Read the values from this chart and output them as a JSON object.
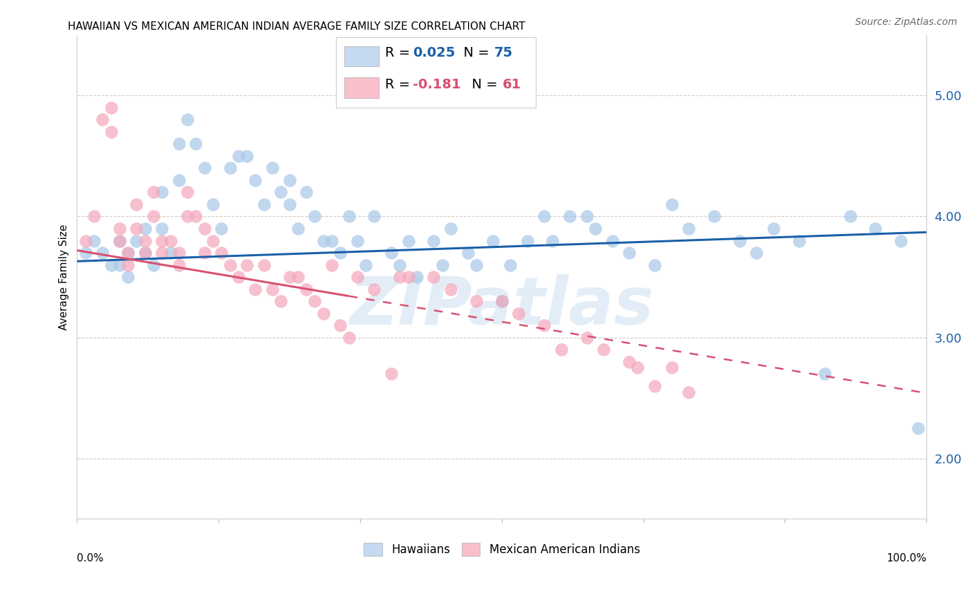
{
  "title": "HAWAIIAN VS MEXICAN AMERICAN INDIAN AVERAGE FAMILY SIZE CORRELATION CHART",
  "source": "Source: ZipAtlas.com",
  "ylabel": "Average Family Size",
  "watermark": "ZIPatlas",
  "ytick_labels": [
    "2.00",
    "3.00",
    "4.00",
    "5.00"
  ],
  "ytick_values": [
    2.0,
    3.0,
    4.0,
    5.0
  ],
  "xlim": [
    0.0,
    1.0
  ],
  "ylim": [
    1.5,
    5.5
  ],
  "hawaiians_color": "#aac8e8",
  "mexican_color": "#f4a8bc",
  "blue_line_color": "#1a5fa8",
  "pink_line_color": "#d85070",
  "blue_line": {
    "x0": 0.0,
    "y0": 3.63,
    "x1": 1.0,
    "y1": 3.87
  },
  "pink_line": {
    "x0": 0.0,
    "y0": 3.72,
    "x1": 1.0,
    "y1": 2.54,
    "dashed_start": 0.32
  },
  "legend_box_colors": [
    "#c5daf0",
    "#f9c0cc"
  ],
  "legend_r_blue": "#1a5fa8",
  "legend_r_pink": "#d85070",
  "bottom_labels": [
    "Hawaiians",
    "Mexican American Indians"
  ],
  "hawaiians_scatter": {
    "x": [
      0.01,
      0.02,
      0.03,
      0.04,
      0.05,
      0.05,
      0.06,
      0.06,
      0.07,
      0.08,
      0.08,
      0.09,
      0.1,
      0.1,
      0.11,
      0.12,
      0.12,
      0.13,
      0.14,
      0.15,
      0.16,
      0.17,
      0.18,
      0.19,
      0.2,
      0.21,
      0.22,
      0.23,
      0.24,
      0.25,
      0.25,
      0.26,
      0.27,
      0.28,
      0.29,
      0.3,
      0.31,
      0.32,
      0.33,
      0.34,
      0.35,
      0.37,
      0.38,
      0.39,
      0.4,
      0.42,
      0.43,
      0.44,
      0.46,
      0.47,
      0.49,
      0.51,
      0.53,
      0.55,
      0.56,
      0.58,
      0.6,
      0.61,
      0.63,
      0.65,
      0.68,
      0.7,
      0.72,
      0.75,
      0.78,
      0.8,
      0.82,
      0.85,
      0.88,
      0.91,
      0.94,
      0.97,
      0.99,
      0.5
    ],
    "y": [
      3.7,
      3.8,
      3.7,
      3.6,
      3.8,
      3.6,
      3.7,
      3.5,
      3.8,
      3.9,
      3.7,
      3.6,
      4.2,
      3.9,
      3.7,
      4.6,
      4.3,
      4.8,
      4.6,
      4.4,
      4.1,
      3.9,
      4.4,
      4.5,
      4.5,
      4.3,
      4.1,
      4.4,
      4.2,
      4.3,
      4.1,
      3.9,
      4.2,
      4.0,
      3.8,
      3.8,
      3.7,
      4.0,
      3.8,
      3.6,
      4.0,
      3.7,
      3.6,
      3.8,
      3.5,
      3.8,
      3.6,
      3.9,
      3.7,
      3.6,
      3.8,
      3.6,
      3.8,
      4.0,
      3.8,
      4.0,
      4.0,
      3.9,
      3.8,
      3.7,
      3.6,
      4.1,
      3.9,
      4.0,
      3.8,
      3.7,
      3.9,
      3.8,
      2.7,
      4.0,
      3.9,
      3.8,
      2.25,
      3.3
    ]
  },
  "mexican_scatter": {
    "x": [
      0.01,
      0.02,
      0.03,
      0.04,
      0.04,
      0.05,
      0.05,
      0.06,
      0.06,
      0.07,
      0.07,
      0.08,
      0.08,
      0.09,
      0.09,
      0.1,
      0.1,
      0.11,
      0.12,
      0.12,
      0.13,
      0.13,
      0.14,
      0.15,
      0.15,
      0.16,
      0.17,
      0.18,
      0.19,
      0.2,
      0.21,
      0.22,
      0.23,
      0.24,
      0.25,
      0.26,
      0.27,
      0.28,
      0.29,
      0.3,
      0.31,
      0.32,
      0.33,
      0.35,
      0.37,
      0.38,
      0.39,
      0.42,
      0.44,
      0.47,
      0.5,
      0.52,
      0.55,
      0.57,
      0.6,
      0.62,
      0.65,
      0.66,
      0.68,
      0.7,
      0.72
    ],
    "y": [
      3.8,
      4.0,
      4.8,
      4.9,
      4.7,
      3.9,
      3.8,
      3.7,
      3.6,
      4.1,
      3.9,
      3.8,
      3.7,
      4.2,
      4.0,
      3.8,
      3.7,
      3.8,
      3.7,
      3.6,
      4.2,
      4.0,
      4.0,
      3.9,
      3.7,
      3.8,
      3.7,
      3.6,
      3.5,
      3.6,
      3.4,
      3.6,
      3.4,
      3.3,
      3.5,
      3.5,
      3.4,
      3.3,
      3.2,
      3.6,
      3.1,
      3.0,
      3.5,
      3.4,
      2.7,
      3.5,
      3.5,
      3.5,
      3.4,
      3.3,
      3.3,
      3.2,
      3.1,
      2.9,
      3.0,
      2.9,
      2.8,
      2.75,
      2.6,
      2.75,
      2.55
    ]
  }
}
